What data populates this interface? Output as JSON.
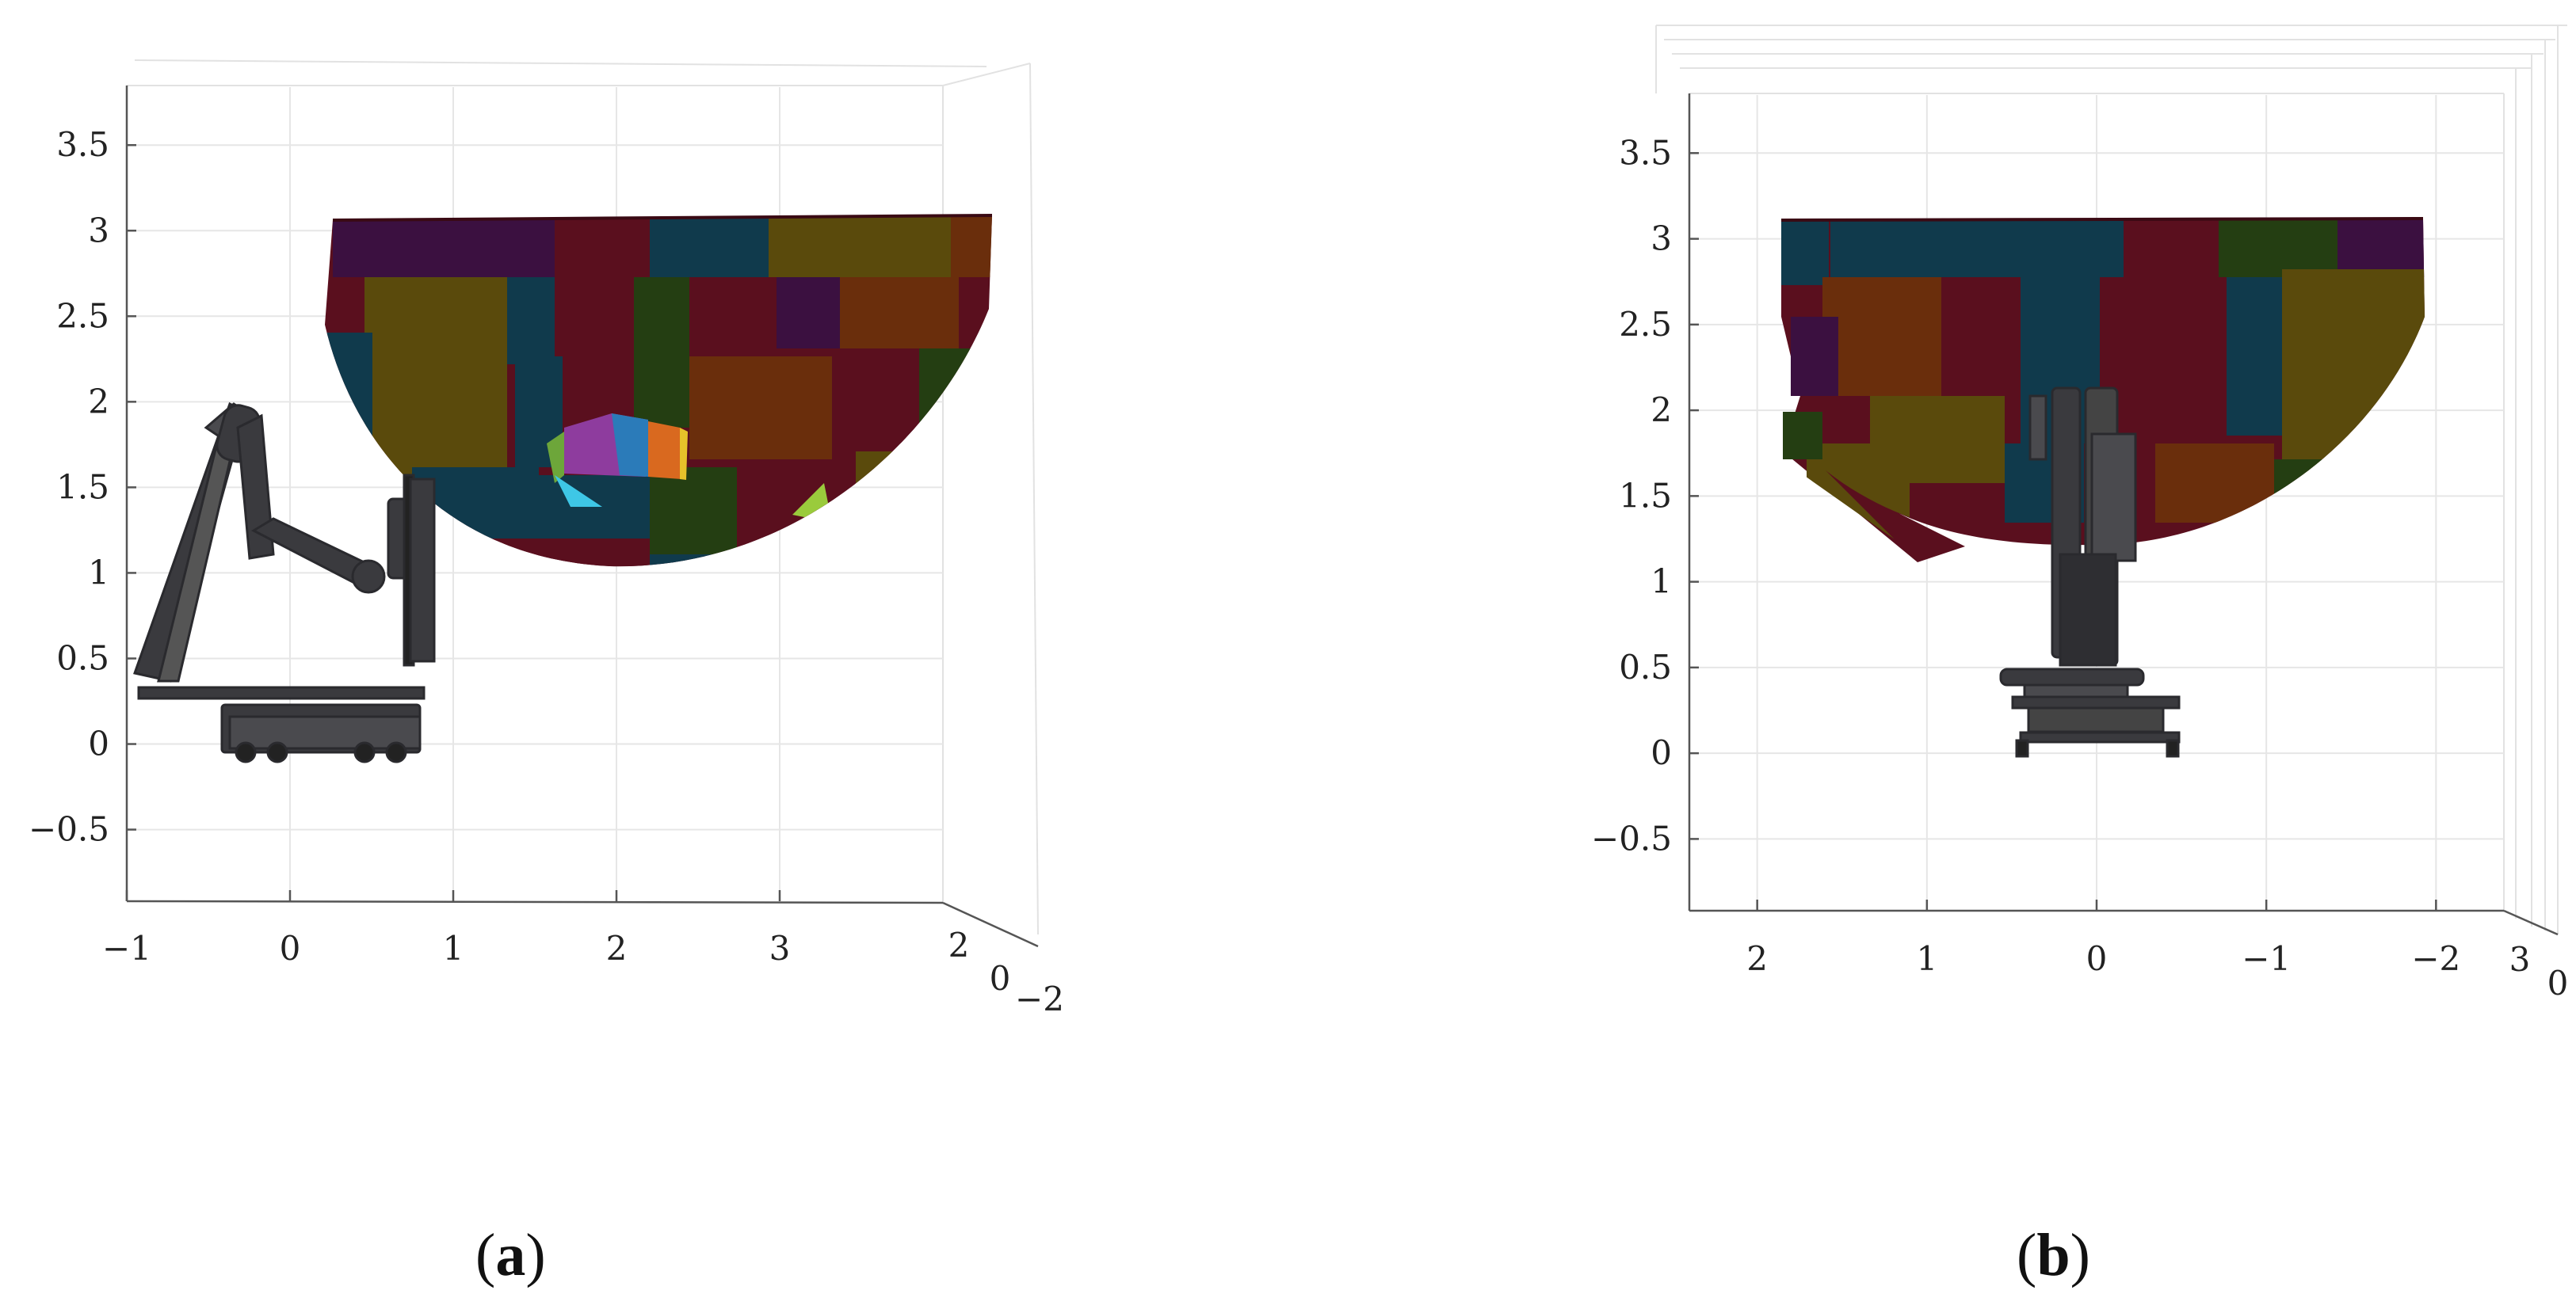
{
  "chart_data": [
    {
      "type": "3d-surface",
      "panel_label": "a",
      "z_axis": {
        "ticks": [
          "3.5",
          "3",
          "2.5",
          "2",
          "1.5",
          "1",
          "0.5",
          "0",
          "−0.5"
        ],
        "range": [
          -0.9,
          3.7
        ]
      },
      "x_axis": {
        "ticks": [
          "−1",
          "0",
          "1",
          "2",
          "3"
        ],
        "range": [
          -1,
          4
        ]
      },
      "y_axis": {
        "ticks": [
          "2",
          "0",
          "−2"
        ]
      },
      "grid": true,
      "colors": [
        "#5a0f1e",
        "#3b1040",
        "#103a4c",
        "#5a4a0c",
        "#243e12",
        "#6a2e0c",
        "#8e3c9e",
        "#2b7bb9",
        "#d9691f"
      ]
    },
    {
      "type": "3d-surface",
      "panel_label": "b",
      "z_axis": {
        "ticks": [
          "3.5",
          "3",
          "2.5",
          "2",
          "1.5",
          "1",
          "0.5",
          "0",
          "−0.5"
        ],
        "range": [
          -0.9,
          3.7
        ]
      },
      "x_axis": {
        "ticks": [
          "2",
          "1",
          "0",
          "−1",
          "−2"
        ],
        "range": [
          2.4,
          -2.4
        ]
      },
      "y_axis": {
        "ticks": [
          "3",
          "0"
        ]
      },
      "grid": true,
      "colors": [
        "#5a0f1e",
        "#3b1040",
        "#103a4c",
        "#5a4a0c",
        "#243e12",
        "#6a2e0c"
      ]
    }
  ],
  "captions": [
    "a",
    "b"
  ]
}
